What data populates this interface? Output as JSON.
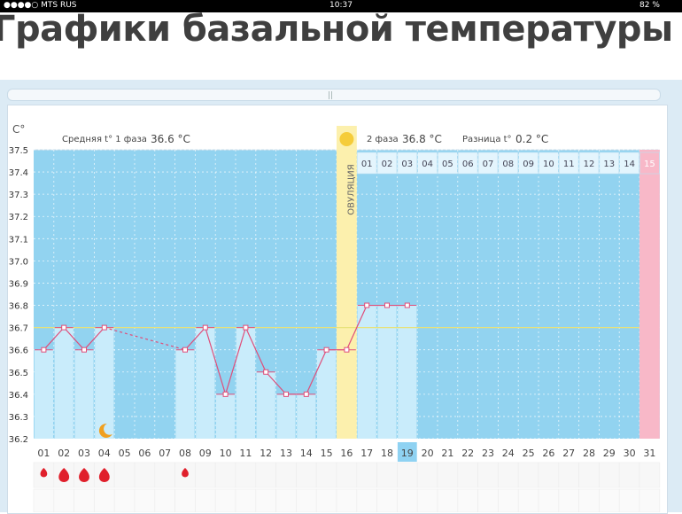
{
  "status_bar": {
    "carrier": "●●●●○ MTS RUS",
    "time": "10:37",
    "battery": "82 %"
  },
  "page": {
    "title": "Графики базальной температуры"
  },
  "chart_data": {
    "type": "line",
    "y_unit": "C°",
    "ylim": [
      36.2,
      37.5
    ],
    "y_ticks": [
      "37.5",
      "37.4",
      "37.3",
      "37.2",
      "37.1",
      "37.0",
      "36.9",
      "36.8",
      "36.7",
      "36.6",
      "36.5",
      "36.4",
      "36.3",
      "36.2"
    ],
    "x_days": [
      "01",
      "02",
      "03",
      "04",
      "05",
      "06",
      "07",
      "08",
      "09",
      "10",
      "11",
      "12",
      "13",
      "14",
      "15",
      "16",
      "17",
      "18",
      "19",
      "20",
      "21",
      "22",
      "23",
      "24",
      "25",
      "26",
      "27",
      "28",
      "29",
      "30",
      "31"
    ],
    "current_day": "19",
    "temperatures": [
      {
        "day": "01",
        "value": 36.6
      },
      {
        "day": "02",
        "value": 36.7
      },
      {
        "day": "03",
        "value": 36.6
      },
      {
        "day": "04",
        "value": 36.7
      },
      {
        "day": "08",
        "value": 36.6
      },
      {
        "day": "09",
        "value": 36.7
      },
      {
        "day": "10",
        "value": 36.4
      },
      {
        "day": "11",
        "value": 36.7
      },
      {
        "day": "12",
        "value": 36.5
      },
      {
        "day": "13",
        "value": 36.4
      },
      {
        "day": "14",
        "value": 36.4
      },
      {
        "day": "15",
        "value": 36.6
      },
      {
        "day": "16",
        "value": 36.6
      },
      {
        "day": "17",
        "value": 36.8
      },
      {
        "day": "18",
        "value": 36.8
      },
      {
        "day": "19",
        "value": 36.8
      }
    ],
    "dashed_gap": {
      "from": "04",
      "to": "08"
    },
    "coverline": 36.7,
    "phase1": {
      "label": "Средняя t° 1 фаза",
      "value": "36.6 °C"
    },
    "phase2": {
      "label": "2 фаза",
      "value": "36.8 °C"
    },
    "difference": {
      "label": "Разница t°",
      "value": "0.2 °C"
    },
    "ovulation": {
      "day": "16",
      "label": "ОВУЛЯЦИЯ"
    },
    "cycle_days": [
      "01",
      "02",
      "03",
      "04",
      "05",
      "06",
      "07",
      "08",
      "09",
      "10",
      "11",
      "12",
      "13",
      "14",
      "15"
    ],
    "highlight_cycle_day": "15",
    "moon_day": "04",
    "period_days": [
      {
        "day": "01",
        "size": "small"
      },
      {
        "day": "02",
        "size": "large"
      },
      {
        "day": "03",
        "size": "large"
      },
      {
        "day": "04",
        "size": "large"
      },
      {
        "day": "08",
        "size": "small"
      }
    ],
    "colors": {
      "background": "#92d3f0",
      "measured_bar": "#c9ecfb",
      "ovulation": "#fcf0ad",
      "highlight": "#f8b8c8",
      "line": "#e04e7a",
      "coverline": "#e7e27a",
      "today": "#8fd2f2"
    }
  }
}
